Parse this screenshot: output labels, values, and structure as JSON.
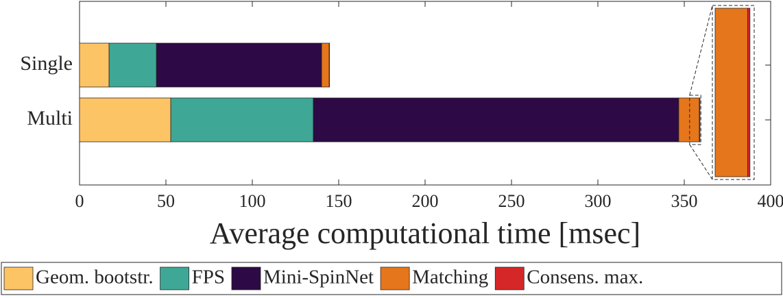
{
  "chart_data": {
    "type": "stacked-barh",
    "xlabel": "Average computational time [msec]",
    "categories": [
      "Single",
      "Multi"
    ],
    "series": [
      {
        "name": "Geom. bootstr.",
        "color": "#fdc466",
        "values": [
          17.1,
          52.8
        ]
      },
      {
        "name": "FPS",
        "color": "#3fa796",
        "values": [
          27.4,
          82.5
        ]
      },
      {
        "name": "Mini-SpinNet",
        "color": "#2d0a45",
        "values": [
          95.6,
          211.5
        ]
      },
      {
        "name": "Matching",
        "color": "#e6761b",
        "values": [
          4.4,
          11.9
        ]
      },
      {
        "name": "Consens. max.",
        "color": "#d62728",
        "values": [
          0.2,
          0.4
        ]
      }
    ],
    "xlim": [
      0,
      400
    ],
    "xticks": [
      0,
      50,
      100,
      150,
      200,
      250,
      300,
      350,
      400
    ]
  }
}
